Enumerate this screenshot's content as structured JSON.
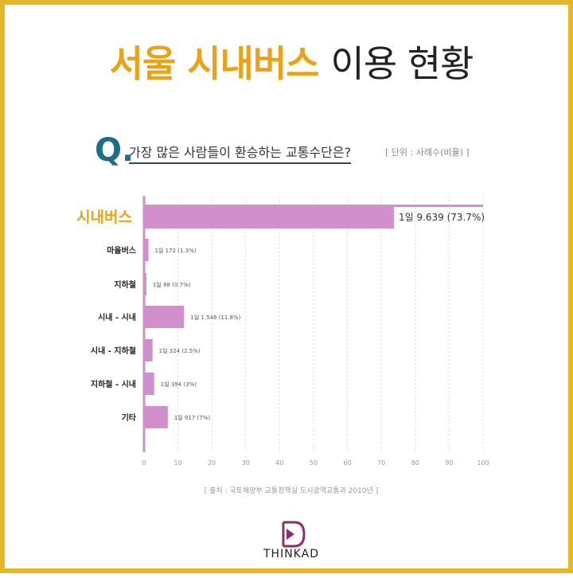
{
  "title": {
    "highlight": "서울 시내버스",
    "rest": "이용 현황"
  },
  "question": {
    "mark": "Q.",
    "text": "가장 많은 사람들이 환승하는 교통수단은?",
    "unit": "[ 단위 : 사례수(비율) ]"
  },
  "chart_data": {
    "type": "bar",
    "orientation": "horizontal",
    "categories": [
      "시내버스",
      "마을버스",
      "지하철",
      "시내 - 시내",
      "시내 - 지하철",
      "지하철 - 시내",
      "기타"
    ],
    "values": [
      73.7,
      1.3,
      0.7,
      11.8,
      2.5,
      3,
      7
    ],
    "data_labels": [
      "1일 9.639 (73.7%)",
      "1일 172 (1.3%)",
      "1일 88 (0.7%)",
      "1일 1.546 (11.8%)",
      "1일 324 (2.5%)",
      "1일 394 (3%)",
      "1일 917 (7%)"
    ],
    "xlim": [
      0,
      100
    ],
    "xticks": [
      "0",
      "10",
      "20",
      "30",
      "40",
      "50",
      "60",
      "70",
      "80",
      "90",
      "100"
    ],
    "grid": true,
    "highlight_category": "시내버스",
    "bar_color": "#d18fcc",
    "highlight_label_color": "#e8a317"
  },
  "source": "[ 출처 : 국토해양부 교통정책실 도시광역교통과 2010년 ]",
  "logo": {
    "text": "THINKAD",
    "color": "#8e2f6a"
  },
  "colors": {
    "border": "#e6b52a",
    "accent": "#e8a317",
    "q_mark": "#1d6e86"
  }
}
